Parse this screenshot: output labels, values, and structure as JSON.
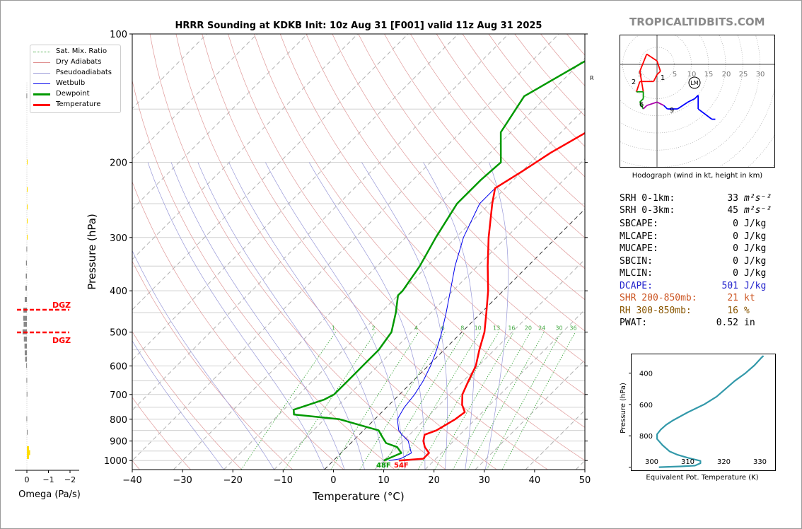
{
  "title": "HRRR Sounding at KDKB Init: 10z Aug 31 [F001] valid 11z Aug 31 2025",
  "watermark": "TROPICALTIDBITS.COM",
  "skewt": {
    "xlabel": "Temperature (°C)",
    "ylabel": "Pressure (hPa)",
    "x_ticks": [
      -40,
      -30,
      -20,
      -10,
      0,
      10,
      20,
      30,
      40,
      50
    ],
    "p_ticks": [
      100,
      200,
      300,
      400,
      500,
      600,
      700,
      800,
      900,
      1000
    ],
    "mixing_ratio_labels": [
      "1",
      "2",
      "4",
      "6",
      "8",
      "10",
      "13",
      "16",
      "20",
      "24",
      "30",
      "36"
    ],
    "rm_label": "RM",
    "surface_dewpoint_label": "48F",
    "surface_temp_label": "54F",
    "legend": [
      "Sat. Mix. Ratio",
      "Dry Adiabats",
      "Pseudoadiabats",
      "Wetbulb",
      "Dewpoint",
      "Temperature"
    ],
    "colors": {
      "temperature": "#ff0000",
      "dewpoint": "#009900",
      "wetbulb": "#0000ee"
    }
  },
  "omega": {
    "xlabel": "Omega (Pa/s)",
    "x_ticks": [
      "0",
      "−1",
      "−2"
    ],
    "dgz_label": "DGZ"
  },
  "hodograph": {
    "caption": "Hodograph (wind in kt, height in km)",
    "ring_labels": [
      "5",
      "5",
      "10",
      "15",
      "20",
      "25",
      "30"
    ],
    "height_labels": [
      "1",
      "2",
      "6",
      "9"
    ],
    "lm_label": "LM"
  },
  "stats": [
    {
      "label": "SRH 0-1km:",
      "value": "33",
      "unit": "m²s⁻²",
      "color": "#000000"
    },
    {
      "label": "SRH 0-3km:",
      "value": "45",
      "unit": "m²s⁻²",
      "color": "#000000"
    },
    {
      "label": "SBCAPE:",
      "value": "0",
      "unit": "J/kg",
      "color": "#000000"
    },
    {
      "label": "MLCAPE:",
      "value": "0",
      "unit": "J/kg",
      "color": "#000000"
    },
    {
      "label": "MUCAPE:",
      "value": "0",
      "unit": "J/kg",
      "color": "#000000"
    },
    {
      "label": "SBCIN:",
      "value": "0",
      "unit": "J/kg",
      "color": "#000000"
    },
    {
      "label": "MLCIN:",
      "value": "0",
      "unit": "J/kg",
      "color": "#000000"
    },
    {
      "label": "DCAPE:",
      "value": "501",
      "unit": "J/kg",
      "color": "#2222cc"
    },
    {
      "label": "SHR 200-850mb:",
      "value": "21",
      "unit": "kt",
      "color": "#cc5522"
    },
    {
      "label": "RH 300-850mb:",
      "value": "16",
      "unit": "%",
      "color": "#885500"
    },
    {
      "label": "PWAT:",
      "value": "0.52",
      "unit": "in",
      "color": "#000000"
    }
  ],
  "theta_e": {
    "xlabel": "Equivalent Pot. Temperature (K)",
    "ylabel": "Pressure (hPa)",
    "x_ticks": [
      "300",
      "310",
      "320",
      "330"
    ],
    "y_ticks": [
      "400",
      "600",
      "800"
    ]
  },
  "chart_data": [
    {
      "type": "line",
      "title": "HRRR Sounding at KDKB Init: 10z Aug 31 [F001] valid 11z Aug 31 2025",
      "xlabel": "Temperature (°C)",
      "ylabel": "Pressure (hPa)",
      "y_scale": "log",
      "xlim": [
        -40,
        50
      ],
      "ylim": [
        1050,
        100
      ],
      "series": [
        {
          "name": "Temperature",
          "points": [
            [
              1000,
              13
            ],
            [
              990,
              17.5
            ],
            [
              960,
              17.5
            ],
            [
              930,
              15.5
            ],
            [
              900,
              14
            ],
            [
              870,
              13
            ],
            [
              850,
              14.5
            ],
            [
              800,
              16
            ],
            [
              770,
              16.5
            ],
            [
              740,
              14.5
            ],
            [
              700,
              12.5
            ],
            [
              650,
              11
            ],
            [
              600,
              9.5
            ],
            [
              550,
              7
            ],
            [
              500,
              4.5
            ],
            [
              450,
              1
            ],
            [
              400,
              -3
            ],
            [
              350,
              -8
            ],
            [
              300,
              -13.5
            ],
            [
              250,
              -19.5
            ],
            [
              230,
              -22
            ],
            [
              210,
              -20
            ],
            [
              190,
              -18
            ],
            [
              170,
              -15
            ],
            [
              150,
              -12.5
            ],
            [
              130,
              -10.5
            ],
            [
              110,
              -9.5
            ],
            [
              100,
              -9
            ]
          ]
        },
        {
          "name": "Dewpoint",
          "points": [
            [
              1000,
              10
            ],
            [
              980,
              11
            ],
            [
              960,
              12
            ],
            [
              930,
              10
            ],
            [
              910,
              7
            ],
            [
              880,
              5
            ],
            [
              850,
              3
            ],
            [
              800,
              -7
            ],
            [
              780,
              -17
            ],
            [
              760,
              -18
            ],
            [
              720,
              -14
            ],
            [
              700,
              -13
            ],
            [
              650,
              -13
            ],
            [
              600,
              -13
            ],
            [
              550,
              -13
            ],
            [
              500,
              -14
            ],
            [
              450,
              -17
            ],
            [
              410,
              -20
            ],
            [
              400,
              -20
            ],
            [
              350,
              -21.5
            ],
            [
              300,
              -24
            ],
            [
              250,
              -26.5
            ],
            [
              220,
              -26.5
            ],
            [
              200,
              -26
            ],
            [
              170,
              -32
            ],
            [
              140,
              -34.5
            ],
            [
              110,
              -28
            ],
            [
              100,
              -24
            ]
          ]
        },
        {
          "name": "Wetbulb",
          "points": [
            [
              1000,
              11
            ],
            [
              990,
              13
            ],
            [
              960,
              14
            ],
            [
              930,
              12.5
            ],
            [
              900,
              11
            ],
            [
              870,
              8.5
            ],
            [
              850,
              7
            ],
            [
              800,
              4.5
            ],
            [
              750,
              3.5
            ],
            [
              700,
              3
            ],
            [
              650,
              2
            ],
            [
              600,
              0.5
            ],
            [
              550,
              -1.5
            ],
            [
              500,
              -4
            ],
            [
              450,
              -7
            ],
            [
              400,
              -10.5
            ],
            [
              350,
              -14.5
            ],
            [
              300,
              -18.5
            ],
            [
              250,
              -22
            ],
            [
              230,
              -22
            ],
            [
              210,
              -20
            ],
            [
              190,
              -18
            ],
            [
              170,
              -15
            ],
            [
              150,
              -12.5
            ],
            [
              130,
              -10.5
            ],
            [
              110,
              -9.5
            ],
            [
              100,
              -9
            ]
          ]
        }
      ],
      "dgz_pressures": [
        445,
        505
      ]
    },
    {
      "type": "line",
      "title": "Hodograph (wind in kt, height in km)",
      "unit": "kt",
      "points_uv": [
        [
          -4,
          -8
        ],
        [
          -5,
          -2
        ],
        [
          -3,
          3
        ],
        [
          0,
          1
        ],
        [
          1,
          -2
        ],
        [
          0,
          -3
        ],
        [
          -1,
          -5
        ],
        [
          -3,
          -5
        ],
        [
          -5,
          -5
        ],
        [
          -6,
          -8
        ],
        [
          -4,
          -8
        ],
        [
          -4,
          -10
        ],
        [
          -5,
          -11
        ],
        [
          -4,
          -13
        ],
        [
          -3,
          -12
        ],
        [
          0,
          -11
        ],
        [
          2,
          -12
        ],
        [
          3,
          -13
        ],
        [
          6,
          -13
        ],
        [
          9,
          -11
        ],
        [
          11,
          -10
        ],
        [
          12,
          -9
        ],
        [
          12,
          -13
        ],
        [
          16,
          -16
        ],
        [
          17,
          -16
        ]
      ],
      "storm_motion_lm": [
        11,
        -5
      ]
    },
    {
      "type": "line",
      "title": "Equivalent Pot. Temperature (K)",
      "xlabel": "Equivalent Pot. Temperature (K)",
      "ylabel": "Pressure (hPa)",
      "xlim": [
        295,
        335
      ],
      "ylim": [
        1020,
        280
      ],
      "points": [
        [
          1000,
          302
        ],
        [
          995,
          308
        ],
        [
          990,
          312
        ],
        [
          975,
          313.5
        ],
        [
          960,
          313.5
        ],
        [
          940,
          310
        ],
        [
          920,
          307
        ],
        [
          900,
          305
        ],
        [
          860,
          303
        ],
        [
          820,
          301.5
        ],
        [
          790,
          301.5
        ],
        [
          760,
          302.5
        ],
        [
          730,
          304
        ],
        [
          700,
          306
        ],
        [
          650,
          310
        ],
        [
          600,
          314.5
        ],
        [
          550,
          318
        ],
        [
          500,
          320.5
        ],
        [
          450,
          323
        ],
        [
          400,
          326
        ],
        [
          350,
          328.5
        ],
        [
          300,
          330.5
        ],
        [
          290,
          331
        ]
      ]
    },
    {
      "type": "bar",
      "title": "Omega (Pa/s)",
      "xlabel": "Omega (Pa/s)",
      "xlim": [
        0.15,
        -2.2
      ],
      "points": [
        [
          980,
          -0.1
        ],
        [
          960,
          -0.15
        ],
        [
          940,
          -0.1
        ],
        [
          860,
          0
        ],
        [
          800,
          0.02
        ],
        [
          700,
          0.01
        ],
        [
          650,
          0.02
        ],
        [
          600,
          0.03
        ],
        [
          580,
          0.08
        ],
        [
          560,
          0.1
        ],
        [
          540,
          0.11
        ],
        [
          520,
          0.14
        ],
        [
          500,
          0.2
        ],
        [
          480,
          0.15
        ],
        [
          465,
          0.17
        ],
        [
          445,
          0.16
        ],
        [
          420,
          0.1
        ],
        [
          395,
          0.07
        ],
        [
          370,
          0.05
        ],
        [
          345,
          0.04
        ],
        [
          320,
          0.02
        ],
        [
          300,
          -0.01
        ],
        [
          275,
          -0.02
        ],
        [
          255,
          -0.03
        ],
        [
          232,
          -0.02
        ],
        [
          200,
          -0.01
        ],
        [
          140,
          0.02
        ]
      ]
    }
  ]
}
